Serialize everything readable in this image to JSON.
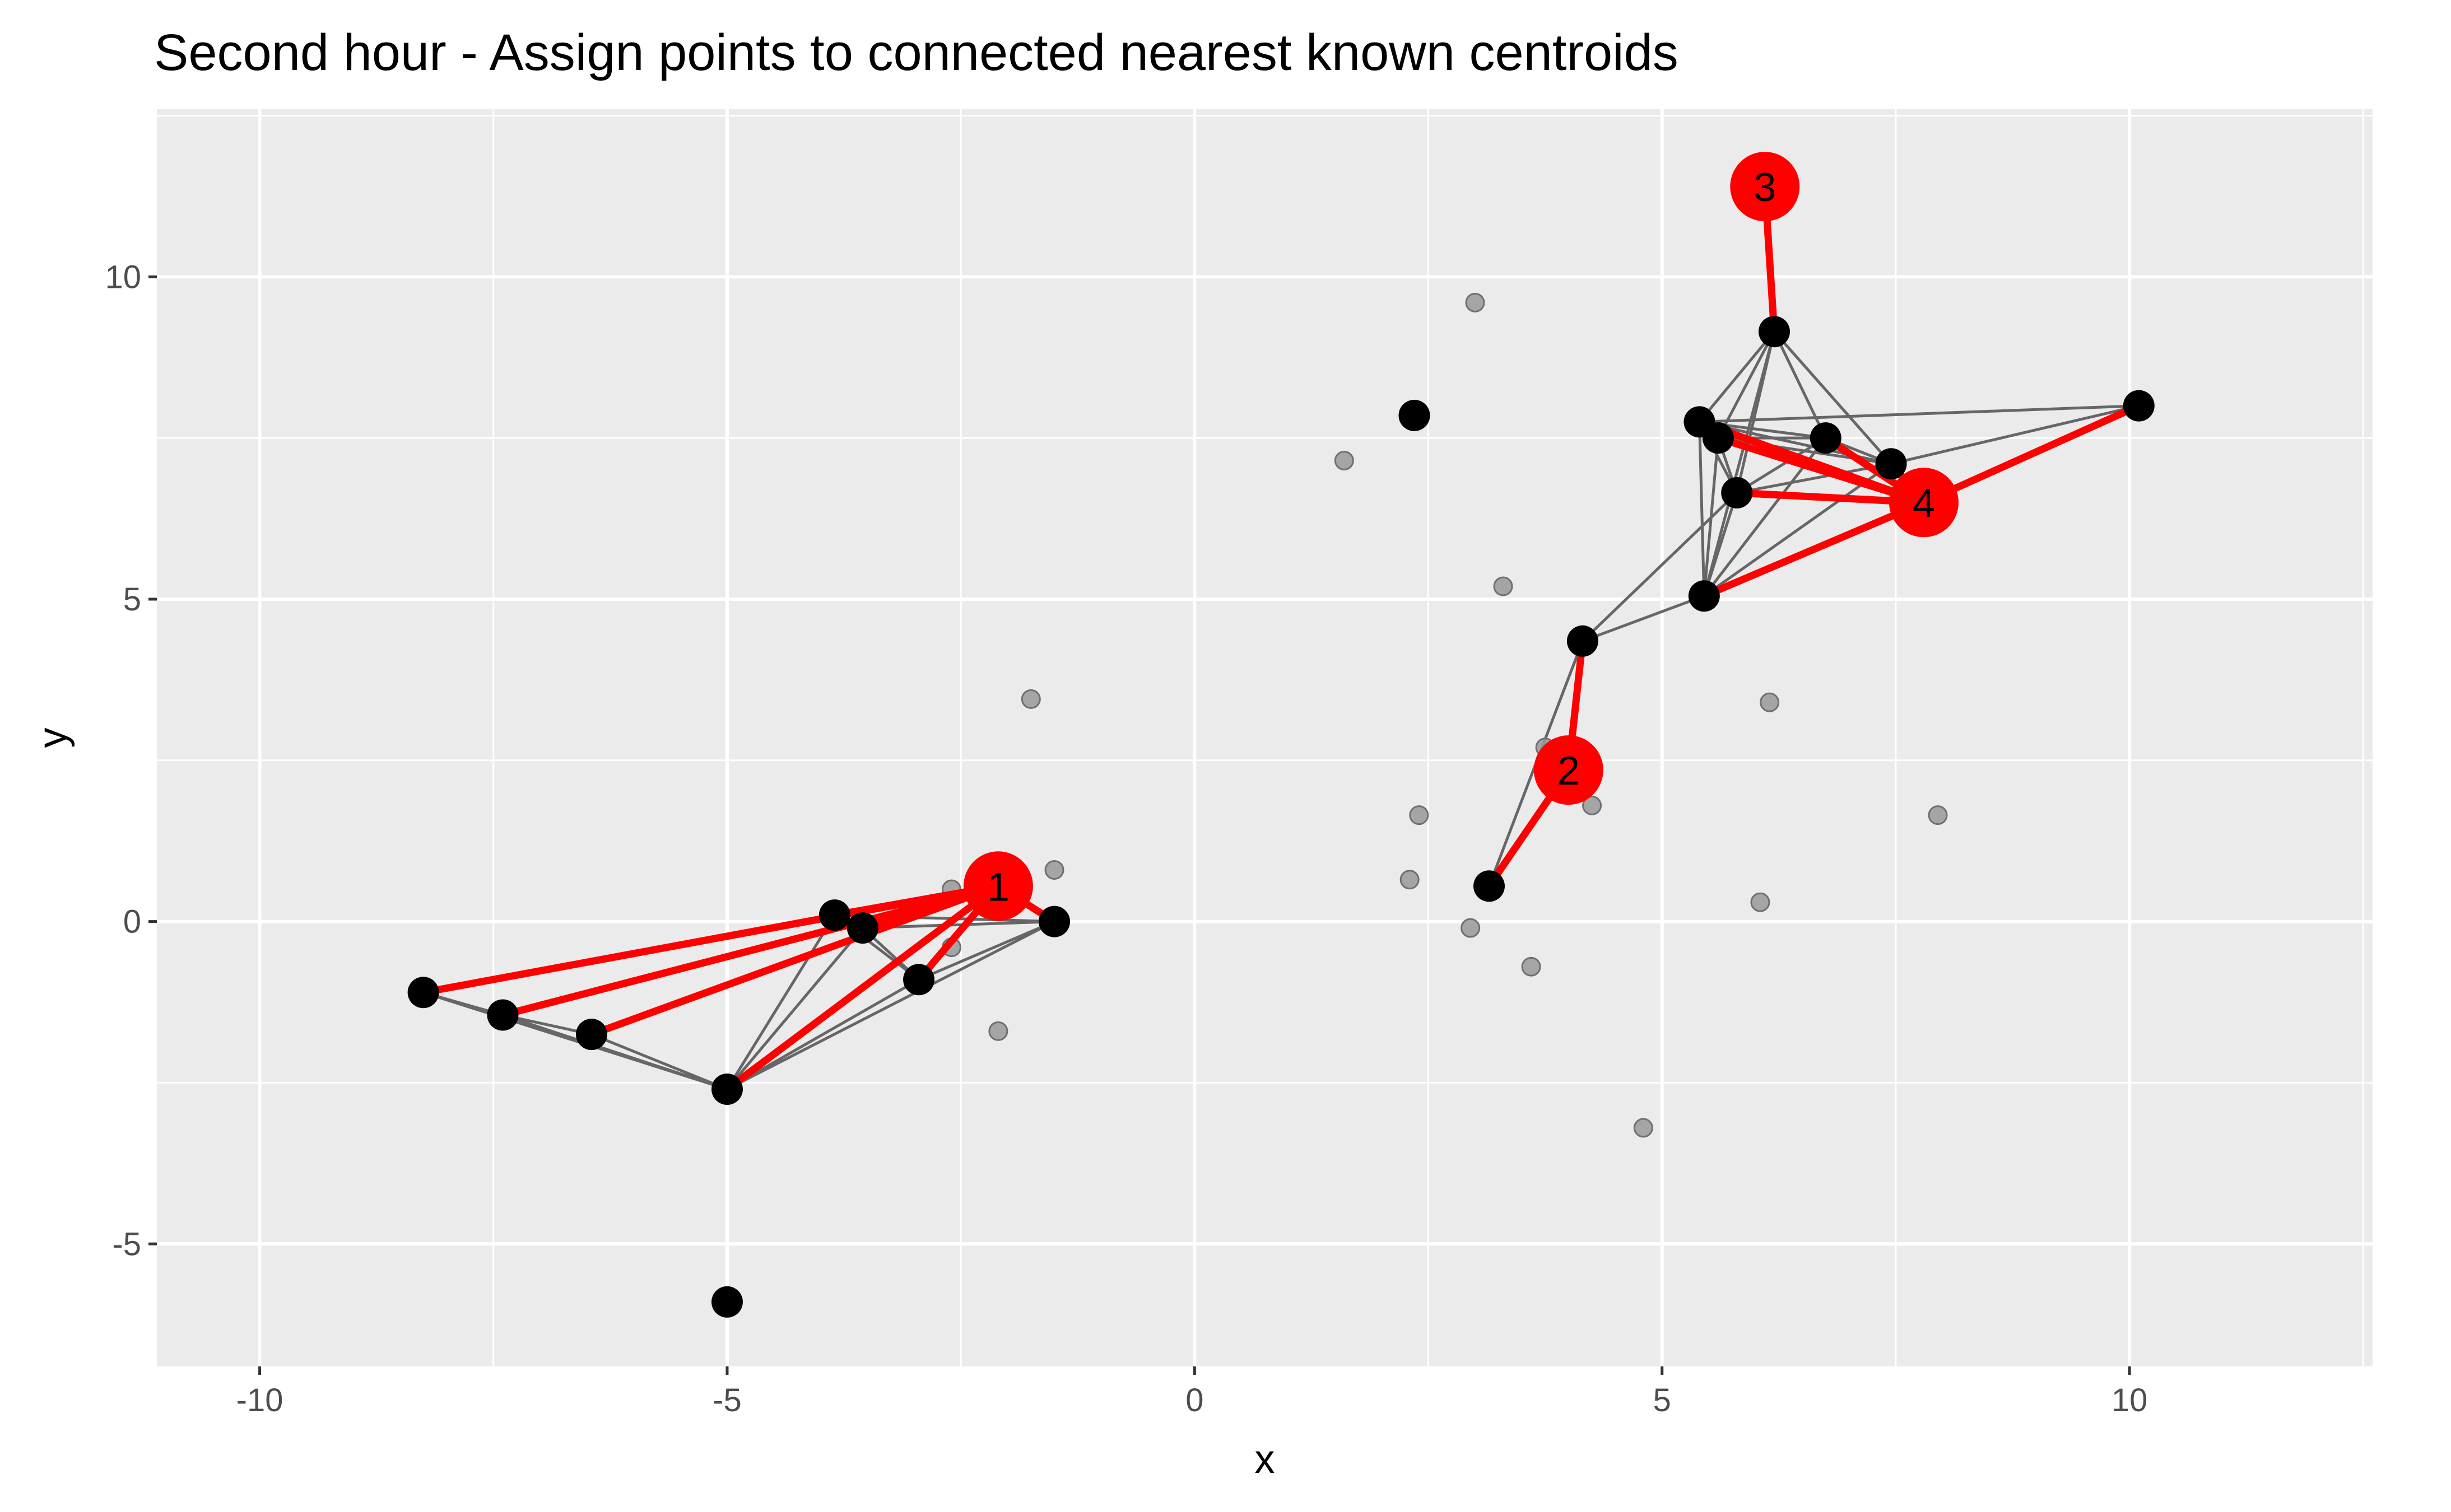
{
  "chart_data": {
    "type": "scatter",
    "title": "Second hour - Assign points to connected nearest known centroids",
    "xlabel": "x",
    "ylabel": "y",
    "xlim": [
      -11.1,
      12.6
    ],
    "ylim": [
      -6.9,
      12.6
    ],
    "x_ticks": [
      -10,
      -5,
      0,
      5,
      10
    ],
    "y_ticks": [
      -5,
      0,
      5,
      10
    ],
    "x_tick_labels": [
      "-10",
      "-5",
      "0",
      "5",
      "10"
    ],
    "y_tick_labels": [
      "-5",
      "0",
      "5",
      "10"
    ],
    "grid": true,
    "background_color": "#ebebeb",
    "colors": {
      "centroid": "#ff0000",
      "assignment_line": "#ff0000",
      "known_point": "#000000",
      "unknown_point": "#999999",
      "neighbor_edge": "#666666"
    },
    "unknown_points": [
      {
        "x": 3.0,
        "y": 9.6
      },
      {
        "x": 1.6,
        "y": 7.15
      },
      {
        "x": 3.3,
        "y": 5.2
      },
      {
        "x": -1.75,
        "y": 3.45
      },
      {
        "x": 6.15,
        "y": 3.4
      },
      {
        "x": 3.75,
        "y": 2.7
      },
      {
        "x": 2.4,
        "y": 1.65
      },
      {
        "x": 4.25,
        "y": 1.8
      },
      {
        "x": 7.95,
        "y": 1.65
      },
      {
        "x": 2.3,
        "y": 0.65
      },
      {
        "x": 6.05,
        "y": 0.3
      },
      {
        "x": 2.95,
        "y": -0.1
      },
      {
        "x": 3.6,
        "y": -0.7
      },
      {
        "x": -1.5,
        "y": 0.8
      },
      {
        "x": -2.6,
        "y": 0.5
      },
      {
        "x": -2.6,
        "y": -0.4
      },
      {
        "x": -2.1,
        "y": -1.7
      },
      {
        "x": 4.8,
        "y": -3.2
      }
    ],
    "known_points": [
      {
        "x": 6.2,
        "y": 9.15
      },
      {
        "x": 5.4,
        "y": 7.75
      },
      {
        "x": 5.6,
        "y": 7.5
      },
      {
        "x": 6.75,
        "y": 7.5
      },
      {
        "x": 7.45,
        "y": 7.1
      },
      {
        "x": 10.1,
        "y": 8.0
      },
      {
        "x": 5.8,
        "y": 6.65
      },
      {
        "x": 5.45,
        "y": 5.05
      },
      {
        "x": 4.15,
        "y": 4.35
      },
      {
        "x": 3.15,
        "y": 0.55
      },
      {
        "x": 2.35,
        "y": 7.85
      },
      {
        "x": -3.85,
        "y": 0.1
      },
      {
        "x": -3.55,
        "y": -0.1
      },
      {
        "x": -1.5,
        "y": 0.0
      },
      {
        "x": -2.95,
        "y": -0.9
      },
      {
        "x": -8.25,
        "y": -1.1
      },
      {
        "x": -7.4,
        "y": -1.45
      },
      {
        "x": -6.45,
        "y": -1.75
      },
      {
        "x": -5.0,
        "y": -2.6
      },
      {
        "x": -5.0,
        "y": -5.9
      }
    ],
    "neighbor_edges": [
      [
        0,
        1
      ],
      [
        0,
        2
      ],
      [
        0,
        3
      ],
      [
        0,
        4
      ],
      [
        0,
        6
      ],
      [
        0,
        7
      ],
      [
        1,
        2
      ],
      [
        1,
        3
      ],
      [
        1,
        4
      ],
      [
        1,
        6
      ],
      [
        1,
        7
      ],
      [
        2,
        3
      ],
      [
        2,
        4
      ],
      [
        2,
        6
      ],
      [
        2,
        7
      ],
      [
        3,
        4
      ],
      [
        3,
        6
      ],
      [
        3,
        7
      ],
      [
        4,
        5
      ],
      [
        4,
        6
      ],
      [
        4,
        7
      ],
      [
        1,
        5
      ],
      [
        6,
        7
      ],
      [
        7,
        8
      ],
      [
        6,
        8
      ],
      [
        8,
        9
      ],
      [
        11,
        12
      ],
      [
        11,
        13
      ],
      [
        11,
        14
      ],
      [
        11,
        18
      ],
      [
        12,
        13
      ],
      [
        12,
        14
      ],
      [
        12,
        18
      ],
      [
        13,
        14
      ],
      [
        13,
        18
      ],
      [
        14,
        18
      ],
      [
        15,
        16
      ],
      [
        15,
        18
      ],
      [
        16,
        17
      ],
      [
        16,
        18
      ],
      [
        17,
        18
      ]
    ],
    "centroids": [
      {
        "label": "1",
        "x": -2.1,
        "y": 0.55,
        "members": [
          11,
          12,
          13,
          14,
          15,
          16,
          17,
          18
        ]
      },
      {
        "label": "2",
        "x": 4.0,
        "y": 2.35,
        "members": [
          8,
          9
        ]
      },
      {
        "label": "3",
        "x": 6.1,
        "y": 11.4,
        "members": [
          0
        ]
      },
      {
        "label": "4",
        "x": 7.8,
        "y": 6.5,
        "members": [
          1,
          2,
          3,
          4,
          5,
          6,
          7
        ]
      }
    ]
  }
}
